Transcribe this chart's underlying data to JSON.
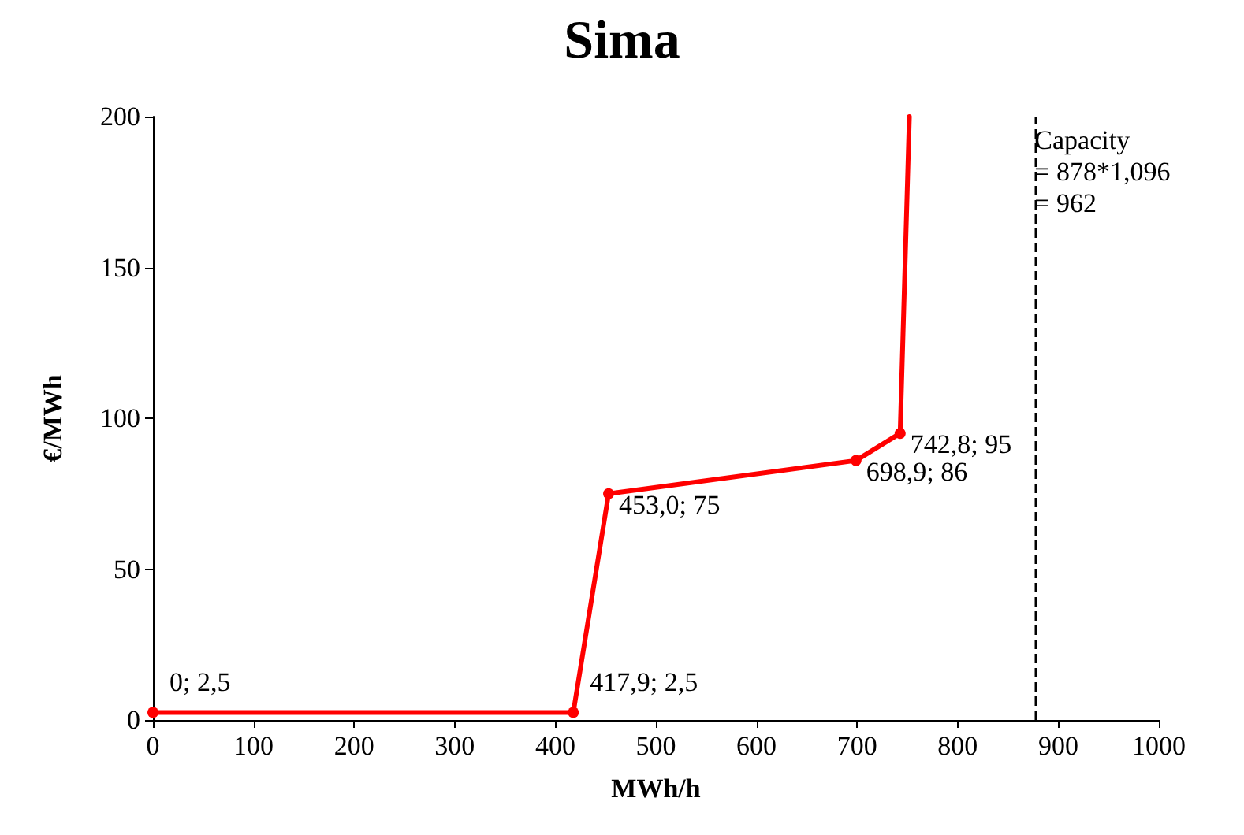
{
  "chart_data": {
    "type": "line",
    "title": "Sima",
    "xlabel": "MWh/h",
    "ylabel": "€/MWh",
    "x": [
      0,
      417.9,
      453.0,
      698.9,
      742.8,
      752
    ],
    "series": [
      {
        "color": "#ff0000",
        "values": [
          2.5,
          2.5,
          75,
          86,
          95,
          200
        ],
        "value_labels": [
          "0; 2,5",
          "417,9; 2,5",
          "453,0; 75",
          "698,9; 86",
          "742,8; 95",
          null
        ]
      }
    ],
    "xlim": [
      0,
      1000
    ],
    "xticks": [
      0,
      100,
      200,
      300,
      400,
      500,
      600,
      700,
      800,
      900,
      1000
    ],
    "ylim": [
      0,
      200
    ],
    "yticks": [
      0,
      50,
      100,
      150,
      200
    ],
    "ref_lines": [
      {
        "axis": "x",
        "value": 878,
        "label": "Capacity\n= 878*1,096\n= 962",
        "color": "#000000",
        "line_style": "dashed"
      }
    ],
    "grid": false,
    "marker": "circle",
    "line_style": "solid"
  }
}
